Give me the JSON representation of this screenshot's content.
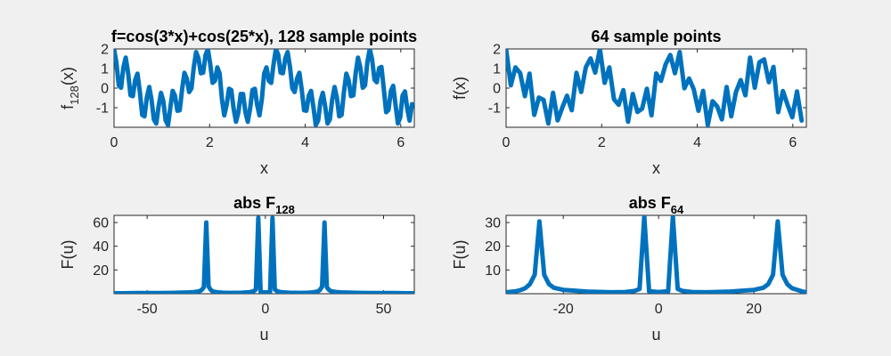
{
  "colors": {
    "background": "#f0f0f0",
    "axes_bg": "#ffffff",
    "line": "#0072bd",
    "axis": "#262626"
  },
  "chart_data": [
    {
      "id": "p1",
      "type": "line",
      "title": "f=cos(3*x)+cos(25*x), 128 sample points",
      "xlabel": "x",
      "ylabel": {
        "main": "f",
        "sub": "128",
        "tail": "(x)"
      },
      "xlim": [
        0,
        6.2832
      ],
      "ylim": [
        -2,
        2
      ],
      "xticks": [
        0,
        2,
        4,
        6
      ],
      "xtick_labels": [
        "0",
        "2",
        "4",
        "6"
      ],
      "yticks": [
        -1,
        0,
        1,
        2
      ],
      "ytick_labels": [
        "-1",
        "0",
        "1",
        "2"
      ],
      "x": [
        0.0,
        0.049,
        0.098,
        0.147,
        0.196,
        0.245,
        0.295,
        0.344,
        0.393,
        0.442,
        0.491,
        0.54,
        0.589,
        0.638,
        0.687,
        0.736,
        0.785,
        0.834,
        0.884,
        0.933,
        0.982,
        1.031,
        1.08,
        1.129,
        1.178,
        1.227,
        1.276,
        1.325,
        1.374,
        1.424,
        1.473,
        1.522,
        1.571,
        1.62,
        1.669,
        1.718,
        1.767,
        1.816,
        1.865,
        1.914,
        1.963,
        2.013,
        2.062,
        2.111,
        2.16,
        2.209,
        2.258,
        2.307,
        2.356,
        2.405,
        2.454,
        2.503,
        2.553,
        2.602,
        2.651,
        2.7,
        2.749,
        2.798,
        2.847,
        2.896,
        2.945,
        2.994,
        3.043,
        3.093,
        3.142,
        3.191,
        3.24,
        3.289,
        3.338,
        3.387,
        3.436,
        3.485,
        3.534,
        3.583,
        3.632,
        3.682,
        3.731,
        3.78,
        3.829,
        3.878,
        3.927,
        3.976,
        4.025,
        4.074,
        4.123,
        4.172,
        4.222,
        4.271,
        4.32,
        4.369,
        4.418,
        4.467,
        4.516,
        4.565,
        4.614,
        4.663,
        4.712,
        4.761,
        4.811,
        4.86,
        4.909,
        4.958,
        5.007,
        5.056,
        5.105,
        5.154,
        5.203,
        5.252,
        5.301,
        5.351,
        5.4,
        5.449,
        5.498,
        5.547,
        5.596,
        5.645,
        5.694,
        5.743,
        5.792,
        5.841,
        5.89,
        5.94,
        5.989,
        6.038,
        6.087,
        6.136,
        6.185,
        6.234
      ],
      "y": [
        2.0,
        1.32,
        0.14,
        0.02,
        1.06,
        1.56,
        0.77,
        -0.37,
        -0.41,
        0.41,
        0.74,
        -0.2,
        -1.37,
        -1.44,
        -0.48,
        0.06,
        -0.6,
        -1.6,
        -1.81,
        -0.94,
        -0.24,
        -0.67,
        -1.65,
        -1.89,
        -0.98,
        -0.14,
        -0.39,
        -1.16,
        -1.13,
        -0.06,
        0.78,
        0.49,
        -0.2,
        -0.01,
        1.07,
        1.84,
        1.52,
        0.76,
        0.79,
        1.69,
        2.0,
        1.21,
        0.27,
        0.37,
        1.06,
        0.75,
        -0.57,
        -1.39,
        -0.85,
        -0.03,
        -0.1,
        -1.05,
        -1.72,
        -1.22,
        -0.3,
        -0.3,
        -1.22,
        -1.72,
        -1.05,
        -0.1,
        -0.03,
        -0.85,
        -1.39,
        -0.57,
        0.75,
        1.06,
        0.37,
        0.27,
        1.21,
        2.0,
        1.69,
        0.79,
        0.76,
        1.52,
        1.84,
        1.07,
        -0.01,
        -0.2,
        0.49,
        0.78,
        -0.06,
        -1.13,
        -1.16,
        -0.39,
        -0.14,
        -0.98,
        -1.89,
        -1.65,
        -0.67,
        -0.24,
        -0.94,
        -1.81,
        -1.6,
        -0.6,
        0.06,
        -0.48,
        -1.44,
        -1.37,
        -0.2,
        0.74,
        0.41,
        -0.41,
        -0.37,
        0.77,
        1.56,
        1.06,
        0.02,
        0.14,
        1.32,
        2.0,
        1.47,
        0.43,
        0.3,
        1.02,
        1.08,
        -0.06,
        -1.23,
        -1.12,
        -0.15,
        0.12,
        -0.85,
        -1.81,
        -1.49,
        -0.38,
        -0.17,
        -1.06,
        -1.66,
        -0.82
      ]
    },
    {
      "id": "p2",
      "type": "line",
      "title": "64 sample points",
      "xlabel": "x",
      "ylabel": {
        "main": "f(x)",
        "sub": "",
        "tail": ""
      },
      "xlim": [
        0,
        6.2832
      ],
      "ylim": [
        -2,
        2
      ],
      "xticks": [
        0,
        2,
        4,
        6
      ],
      "xtick_labels": [
        "0",
        "2",
        "4",
        "6"
      ],
      "yticks": [
        -1,
        0,
        1,
        2
      ],
      "ytick_labels": [
        "-1",
        "0",
        "1",
        "2"
      ],
      "x": [
        0.0,
        0.098,
        0.196,
        0.295,
        0.393,
        0.491,
        0.589,
        0.687,
        0.785,
        0.884,
        0.982,
        1.08,
        1.178,
        1.276,
        1.374,
        1.473,
        1.571,
        1.669,
        1.767,
        1.865,
        1.963,
        2.062,
        2.16,
        2.258,
        2.356,
        2.454,
        2.553,
        2.651,
        2.749,
        2.847,
        2.945,
        3.043,
        3.142,
        3.24,
        3.338,
        3.436,
        3.534,
        3.632,
        3.731,
        3.829,
        3.927,
        4.025,
        4.123,
        4.222,
        4.32,
        4.418,
        4.516,
        4.614,
        4.712,
        4.811,
        4.909,
        5.007,
        5.105,
        5.203,
        5.301,
        5.4,
        5.498,
        5.596,
        5.694,
        5.792,
        5.89,
        5.989,
        6.087,
        6.185
      ],
      "y": [
        2.0,
        0.14,
        1.06,
        0.77,
        -0.41,
        0.74,
        -1.37,
        -0.48,
        -0.6,
        -1.81,
        -0.24,
        -1.65,
        -0.98,
        -0.39,
        -1.13,
        0.78,
        -0.2,
        1.07,
        1.52,
        0.79,
        2.0,
        0.27,
        1.06,
        -0.57,
        -0.85,
        -0.1,
        -1.72,
        -0.3,
        -1.22,
        -1.05,
        -0.03,
        -1.39,
        0.75,
        0.37,
        1.21,
        1.69,
        0.76,
        1.84,
        -0.01,
        0.49,
        -0.06,
        -1.16,
        -0.14,
        -1.89,
        -0.67,
        -0.94,
        -1.6,
        0.06,
        -1.44,
        -0.2,
        0.41,
        -0.37,
        1.56,
        0.02,
        1.32,
        1.47,
        0.3,
        1.08,
        -1.23,
        -0.15,
        -0.85,
        -1.49,
        -0.17,
        -1.66
      ]
    },
    {
      "id": "p3",
      "type": "line",
      "title": {
        "main": "abs F",
        "sub": "128"
      },
      "xlabel": "u",
      "ylabel": {
        "main": "F(u)",
        "sub": "",
        "tail": ""
      },
      "xlim": [
        -64,
        63
      ],
      "ylim": [
        0,
        66
      ],
      "xticks": [
        -50,
        0,
        50
      ],
      "xtick_labels": [
        "-50",
        "0",
        "50"
      ],
      "yticks": [
        20,
        40,
        60
      ],
      "ytick_labels": [
        "20",
        "40",
        "60"
      ],
      "x": [
        -64,
        -60,
        -55,
        -50,
        -45,
        -40,
        -35,
        -32,
        -30,
        -28,
        -27,
        -26,
        -25,
        -24,
        -23,
        -22,
        -20,
        -18,
        -15,
        -10,
        -7,
        -5,
        -4,
        -3,
        -2,
        0,
        2,
        3,
        4,
        5,
        7,
        10,
        15,
        18,
        20,
        22,
        23,
        24,
        25,
        26,
        27,
        28,
        30,
        32,
        35,
        40,
        45,
        50,
        55,
        60,
        63
      ],
      "y": [
        0.4,
        0.4,
        0.5,
        0.5,
        0.6,
        0.7,
        0.9,
        1.1,
        1.4,
        2.0,
        3.0,
        5.5,
        60,
        6.0,
        3.0,
        1.8,
        1.1,
        0.8,
        0.7,
        0.8,
        1.2,
        2.0,
        3.5,
        64,
        1.5,
        1.0,
        1.5,
        64,
        3.5,
        2.0,
        1.2,
        0.8,
        0.7,
        0.8,
        1.1,
        1.8,
        3.0,
        6.0,
        60,
        5.5,
        3.0,
        2.0,
        1.4,
        1.1,
        0.9,
        0.7,
        0.6,
        0.5,
        0.5,
        0.4,
        0.4
      ]
    },
    {
      "id": "p4",
      "type": "line",
      "title": {
        "main": "abs F",
        "sub": "64"
      },
      "xlabel": "u",
      "ylabel": {
        "main": "F(u)",
        "sub": "",
        "tail": ""
      },
      "xlim": [
        -32,
        31
      ],
      "ylim": [
        0,
        33
      ],
      "xticks": [
        -20,
        0,
        20
      ],
      "xtick_labels": [
        "-20",
        "0",
        "20"
      ],
      "yticks": [
        10,
        20,
        30
      ],
      "ytick_labels": [
        "10",
        "20",
        "30"
      ],
      "x": [
        -32,
        -30,
        -29,
        -28,
        -27,
        -26,
        -25,
        -24,
        -23,
        -22,
        -20,
        -15,
        -10,
        -7,
        -5,
        -4,
        -3,
        -2,
        0,
        2,
        3,
        4,
        5,
        7,
        10,
        15,
        20,
        22,
        23,
        24,
        25,
        26,
        27,
        28,
        30,
        31
      ],
      "y": [
        0.6,
        1.0,
        1.5,
        2.3,
        4.0,
        8.0,
        30.5,
        8.0,
        4.0,
        2.5,
        1.6,
        0.9,
        0.6,
        0.7,
        1.2,
        2.0,
        32.5,
        1.0,
        0.7,
        1.0,
        32.5,
        2.0,
        1.2,
        0.7,
        0.6,
        0.9,
        1.6,
        2.5,
        4.0,
        8.0,
        30.5,
        8.0,
        4.0,
        2.3,
        1.0,
        0.6
      ]
    }
  ]
}
